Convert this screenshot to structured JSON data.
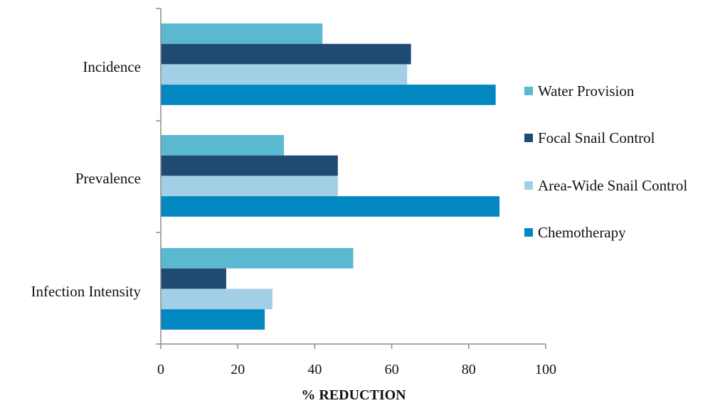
{
  "chart_data": {
    "type": "bar",
    "orientation": "horizontal",
    "categories": [
      "Incidence",
      "Prevalence",
      "Infection Intensity"
    ],
    "series": [
      {
        "name": "Water Provision",
        "color": "#5bb8d1",
        "values": [
          42,
          32,
          50
        ]
      },
      {
        "name": "Focal Snail Control",
        "color": "#1f4a73",
        "values": [
          65,
          46,
          17
        ]
      },
      {
        "name": "Area-Wide Snail Control",
        "color": "#a3cfe6",
        "values": [
          64,
          46,
          29
        ]
      },
      {
        "name": "Chemotherapy",
        "color": "#0287c0",
        "values": [
          87,
          88,
          27
        ]
      }
    ],
    "xlabel": "% REDUCTION",
    "ylabel": "",
    "xlim": [
      0,
      100
    ],
    "xticks": [
      0,
      20,
      40,
      60,
      80,
      100
    ],
    "grid": false,
    "legend_position": "right"
  }
}
